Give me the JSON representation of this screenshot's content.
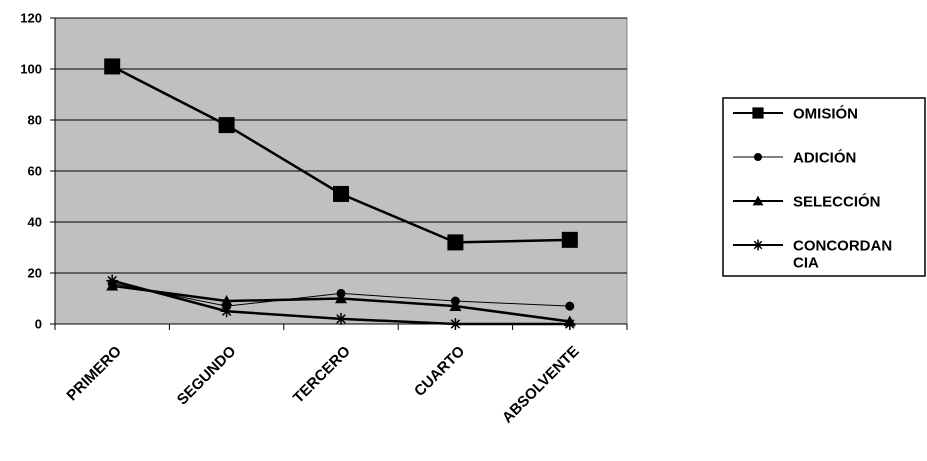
{
  "chart_data": {
    "type": "line",
    "categories": [
      "PRIMERO",
      "SEGUNDO",
      "TERCERO",
      "CUARTO",
      "ABSOLVENTE"
    ],
    "ylim": [
      0,
      120
    ],
    "yticks": [
      0,
      20,
      40,
      60,
      80,
      100,
      120
    ],
    "grid": true,
    "plot_background": "#c0c0c0",
    "legend_position": "right",
    "series": [
      {
        "name": "OMISIÓN",
        "legend_lines": [
          "OMISIÓN"
        ],
        "values": [
          101,
          78,
          51,
          32,
          33
        ],
        "marker": "square",
        "color": "#000000"
      },
      {
        "name": "ADICIÓN",
        "legend_lines": [
          "ADICIÓN"
        ],
        "values": [
          16,
          7,
          12,
          9,
          7
        ],
        "marker": "circle",
        "color": "#000000"
      },
      {
        "name": "SELECCIÓN",
        "legend_lines": [
          "SELECCIÓN"
        ],
        "values": [
          15,
          9,
          10,
          7,
          1
        ],
        "marker": "triangle",
        "color": "#000000"
      },
      {
        "name": "CONCORDANCIA",
        "legend_lines": [
          "CONCORDAN",
          "CIA"
        ],
        "values": [
          17,
          5,
          2,
          0,
          0
        ],
        "marker": "star",
        "color": "#000000"
      }
    ]
  }
}
